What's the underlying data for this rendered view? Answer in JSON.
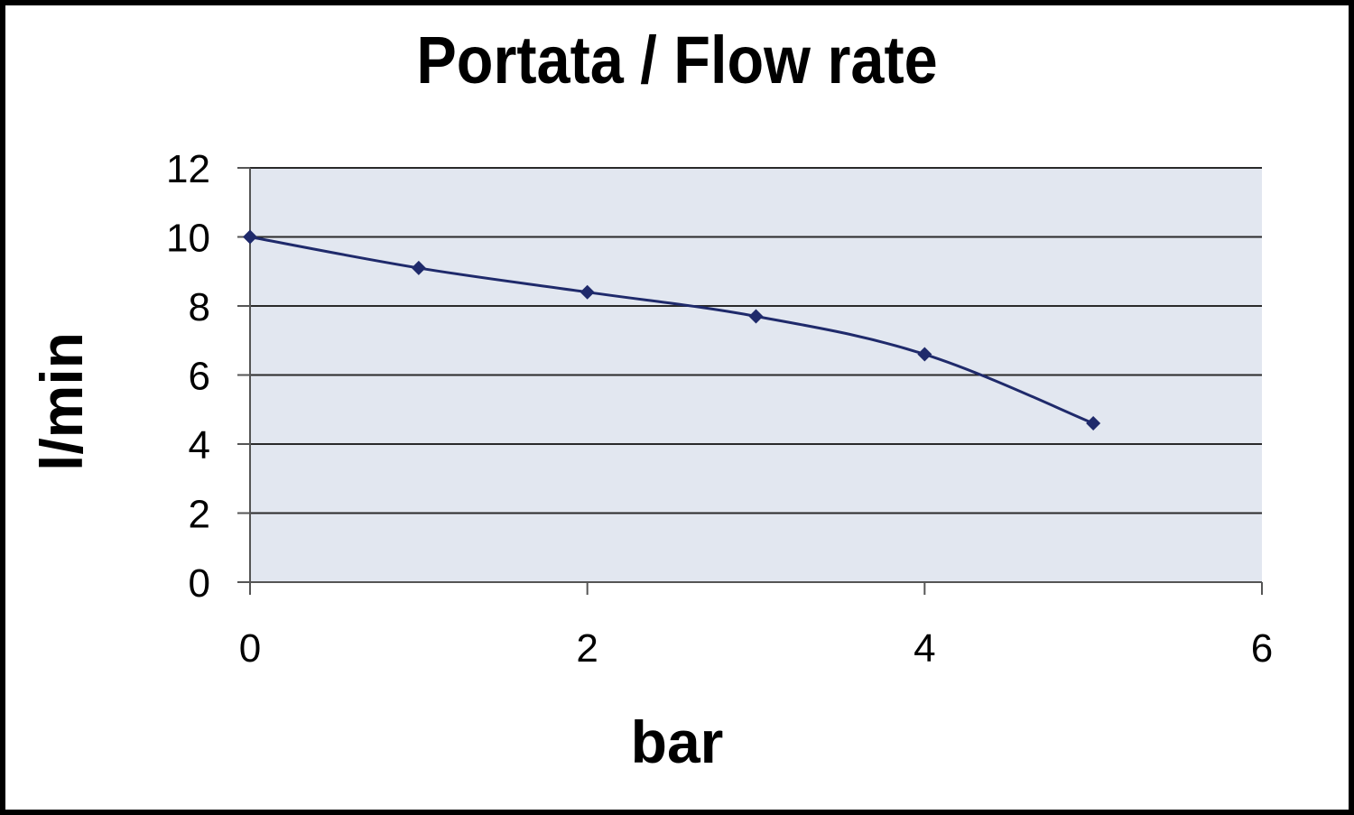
{
  "chart_data": {
    "type": "line",
    "title": "Portata / Flow rate",
    "xlabel": "bar",
    "ylabel": "l/min",
    "xlim": [
      0,
      6
    ],
    "ylim": [
      0,
      12
    ],
    "x_ticks": [
      "0",
      "2",
      "4",
      "6"
    ],
    "y_ticks": [
      "0",
      "2",
      "4",
      "6",
      "8",
      "10",
      "12"
    ],
    "grid": true,
    "legend": "none",
    "colors": {
      "plot_background": "#e2e7f0",
      "line": "#1f2a6b",
      "grid": "#000000"
    },
    "series": [
      {
        "x": [
          0,
          1,
          2,
          3,
          4,
          5
        ],
        "y": [
          10.0,
          9.1,
          8.4,
          7.7,
          6.6,
          4.6
        ]
      }
    ]
  }
}
